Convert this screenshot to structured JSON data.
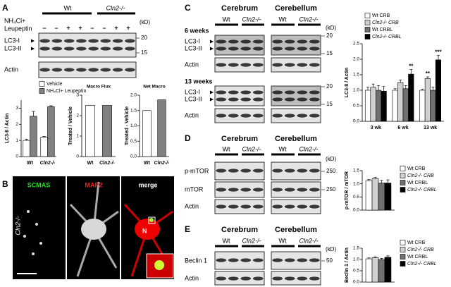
{
  "panels": {
    "A": {
      "letter": "A",
      "groups": [
        "Wt",
        "Cln2-/-"
      ],
      "treatment": [
        "NH₄Cl+",
        "Leupeptin"
      ],
      "lanes": [
        "–",
        "–",
        "+",
        "+",
        "–",
        "–",
        "+",
        "+"
      ],
      "kd_unit": "(kD)",
      "kd": [
        20,
        15
      ],
      "bands": [
        "LC3-I",
        "LC3-II",
        "Actin"
      ]
    },
    "B": {
      "letter": "B",
      "stains": [
        "SCMAS",
        "MAP2",
        "merge"
      ],
      "genotype": "Cln2-/-",
      "nucleus": "N"
    },
    "C": {
      "letter": "C",
      "regions": [
        "Cerebrum",
        "Cerebellum"
      ],
      "groups": [
        "Wt",
        "Cln2-/-",
        "Wt",
        "Cln2-/-"
      ],
      "kd_unit": "(kD)",
      "blocks": [
        {
          "label": "6 weeks",
          "bands": [
            "LC3-I",
            "LC3-II",
            "Actin"
          ],
          "kd": [
            20,
            15
          ]
        },
        {
          "label": "13 weeks",
          "bands": [
            "LC3-I",
            "LC3-II",
            "Actin"
          ],
          "kd": [
            20,
            15
          ]
        }
      ]
    },
    "D": {
      "letter": "D",
      "regions": [
        "Cerebrum",
        "Cerebellum"
      ],
      "groups": [
        "Wt",
        "Cln2-/-",
        "Wt",
        "Cln2-/-"
      ],
      "kd_unit": "(kD)",
      "bands": [
        "p-mTOR",
        "mTOR",
        "Actin"
      ],
      "kd": [
        250,
        250
      ]
    },
    "E": {
      "letter": "E",
      "regions": [
        "Cerebrum",
        "Cerebellum"
      ],
      "groups": [
        "Wt",
        "Cln2-/-",
        "Wt",
        "Cln2-/-"
      ],
      "kd_unit": "(kD)",
      "bands": [
        "Beclin 1",
        "Actin"
      ],
      "kd": [
        50
      ]
    }
  },
  "chart_data": [
    {
      "type": "bar",
      "y_label": "LC3-II / Actin",
      "categories": [
        "Wt",
        "Cln2-/-"
      ],
      "series": [
        {
          "name": "Vehicle",
          "color": "#ffffff",
          "values": [
            1.0,
            1.2
          ],
          "errors": [
            0.08,
            0.05
          ]
        },
        {
          "name": "NH₄Cl+ Leupeptin",
          "color": "#808080",
          "values": [
            2.5,
            3.1
          ],
          "errors": [
            0.3,
            0.05
          ]
        }
      ],
      "ylim": [
        0,
        3.5
      ],
      "yticks": [
        0,
        1,
        2,
        3
      ]
    },
    {
      "type": "bar",
      "title": "Macro Flux",
      "y_label": "Treated / Vehicle",
      "categories": [
        "Wt",
        "Cln2-/-"
      ],
      "values": [
        2.5,
        2.5
      ],
      "colors": [
        "#ffffff",
        "#808080"
      ],
      "ylim": [
        0,
        3
      ],
      "yticks": [
        0,
        1,
        2,
        3
      ]
    },
    {
      "type": "bar",
      "title": "Net Macro",
      "y_label": "Treated - Vehicle",
      "categories": [
        "Wt",
        "Cln2-/-"
      ],
      "values": [
        1.5,
        1.85
      ],
      "colors": [
        "#ffffff",
        "#808080"
      ],
      "ylim": [
        0,
        2
      ],
      "yticks": [
        {
          "value": 0,
          "label": "0.0"
        },
        {
          "value": 0.5,
          "label": "0.5"
        },
        {
          "value": 1,
          "label": "1.0"
        },
        {
          "value": 1.5,
          "label": "1.5"
        },
        {
          "value": 2,
          "label": "2.0"
        }
      ]
    },
    {
      "type": "bar",
      "y_label": "LC3-II / Actin",
      "categories": [
        "3 wk",
        "6 wk",
        "13 wk"
      ],
      "series": [
        {
          "name": "Wt CRB",
          "color": "#ffffff",
          "values": [
            1.0,
            1.0,
            1.0
          ],
          "errors": [
            0.1,
            0.05,
            0.03
          ]
        },
        {
          "name": "Cln2-/- CRB",
          "color": "#d0d0d0",
          "values": [
            1.1,
            1.25,
            1.38
          ],
          "errors": [
            0.1,
            0.08,
            0.05
          ],
          "sig_labels": [
            null,
            null,
            "**"
          ]
        },
        {
          "name": "Wt CRBL",
          "color": "#707070",
          "values": [
            1.0,
            1.05,
            1.0
          ],
          "errors": [
            0.15,
            0.1,
            0.1
          ]
        },
        {
          "name": "Cln2-/- CRBL",
          "color": "#000000",
          "values": [
            0.97,
            1.52,
            1.98
          ],
          "errors": [
            0.15,
            0.15,
            0.15
          ],
          "sig_labels": [
            null,
            "**",
            "***"
          ]
        }
      ],
      "ylim": [
        0,
        2.5
      ],
      "yticks": [
        {
          "value": 0,
          "label": "0.0"
        },
        {
          "value": 0.5,
          "label": "0.5"
        },
        {
          "value": 1,
          "label": "1.0"
        },
        {
          "value": 1.5,
          "label": "1.5"
        },
        {
          "value": 2,
          "label": "2.0"
        },
        {
          "value": 2.5,
          "label": "2.5"
        }
      ]
    },
    {
      "type": "bar",
      "y_label": "p-mTOR / mTOR",
      "categories": [
        null
      ],
      "series": [
        {
          "name": "Wt CRB",
          "color": "#ffffff",
          "values": [
            1.12
          ],
          "errors": [
            0.04
          ]
        },
        {
          "name": "Cln2-/- CRB",
          "color": "#d0d0d0",
          "values": [
            1.2
          ],
          "errors": [
            0.04
          ]
        },
        {
          "name": "Wt CRBL",
          "color": "#707070",
          "values": [
            1.03
          ],
          "errors": [
            0.1
          ]
        },
        {
          "name": "Cln2-/- CRBL",
          "color": "#000000",
          "values": [
            1.03
          ],
          "errors": [
            0.12
          ]
        }
      ],
      "ylim": [
        0,
        1.5
      ],
      "yticks": [
        {
          "value": 0,
          "label": "0.0"
        },
        {
          "value": 0.5,
          "label": "0.5"
        },
        {
          "value": 1,
          "label": "1.0"
        },
        {
          "value": 1.5,
          "label": "1.5"
        }
      ]
    },
    {
      "type": "bar",
      "y_label": "Beclin 1 / Actin",
      "categories": [
        null
      ],
      "series": [
        {
          "name": "Wt CRB",
          "color": "#ffffff",
          "values": [
            1.03
          ],
          "errors": [
            0.04
          ]
        },
        {
          "name": "Cln2-/- CRB",
          "color": "#d0d0d0",
          "values": [
            1.08
          ],
          "errors": [
            0.04
          ]
        },
        {
          "name": "Wt CRBL",
          "color": "#707070",
          "values": [
            1.0
          ],
          "errors": [
            0.05
          ]
        },
        {
          "name": "Cln2-/- CRBL",
          "color": "#000000",
          "values": [
            1.1
          ],
          "errors": [
            0.06
          ]
        }
      ],
      "ylim": [
        0,
        1.5
      ],
      "yticks": [
        {
          "value": 0,
          "label": "0.0"
        },
        {
          "value": 0.5,
          "label": "0.5"
        },
        {
          "value": 1,
          "label": "1.0"
        },
        {
          "value": 1.5,
          "label": "1.5"
        }
      ]
    }
  ]
}
